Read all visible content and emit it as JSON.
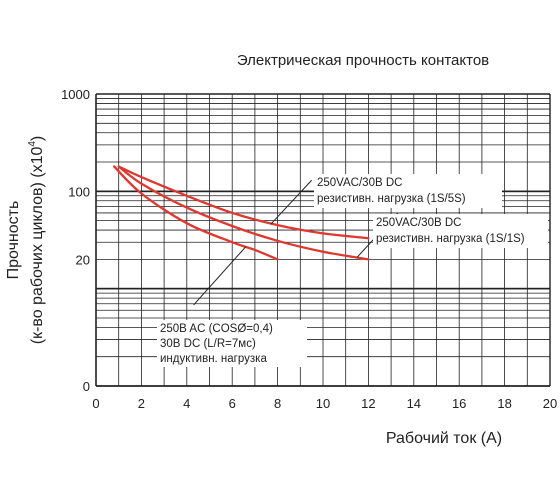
{
  "chart_data": {
    "type": "line",
    "title": "Электрическая прочность контактов",
    "xlabel": "Рабочий ток (A)",
    "ylabel_line1": "Прочность",
    "ylabel_line2": "(к-во рабочих циклов) (x10",
    "ylabel_exp": "4",
    "ylabel_close": ")",
    "x_scale": "linear",
    "y_scale": "log",
    "xlim": [
      0,
      20
    ],
    "ylim": [
      1,
      1000
    ],
    "grid": true,
    "x_ticks": [
      "0",
      "2",
      "4",
      "6",
      "8",
      "10",
      "12",
      "14",
      "16",
      "18",
      "20"
    ],
    "y_ticks": [
      {
        "value": 1000,
        "label": "1000"
      },
      {
        "value": 100,
        "label": "100"
      },
      {
        "value": 20,
        "label": "20"
      },
      {
        "value": 1,
        "label": "0"
      }
    ],
    "series": [
      {
        "values": [
          [
            1,
            180
          ],
          [
            2,
            140
          ],
          [
            4,
            90
          ],
          [
            6,
            60
          ],
          [
            8,
            45
          ],
          [
            10,
            37
          ],
          [
            12,
            33
          ]
        ]
      },
      {
        "values": [
          [
            1,
            180
          ],
          [
            2,
            120
          ],
          [
            4,
            68
          ],
          [
            6,
            44
          ],
          [
            8,
            31
          ],
          [
            10,
            24
          ],
          [
            12,
            20
          ]
        ]
      },
      {
        "values": [
          [
            0.8,
            180
          ],
          [
            2,
            95
          ],
          [
            4,
            47
          ],
          [
            6,
            30
          ],
          [
            7,
            25
          ],
          [
            8,
            20
          ]
        ]
      }
    ],
    "annotations": [
      {
        "lines": [
          "250VAC/30B DC",
          "резистивн. нагрузка (1S/5S)"
        ]
      },
      {
        "lines": [
          "250VAC/30B DC",
          "резистивн. нагрузка (1S/1S)"
        ]
      },
      {
        "lines": [
          "250B AC (COSØ=0,4)",
          "30B DC (L/R=7мс)",
          "индуктивн. нагрузка"
        ]
      }
    ],
    "colors": {
      "series": "#e0382f",
      "grid": "#222222",
      "text": "#222222"
    }
  }
}
